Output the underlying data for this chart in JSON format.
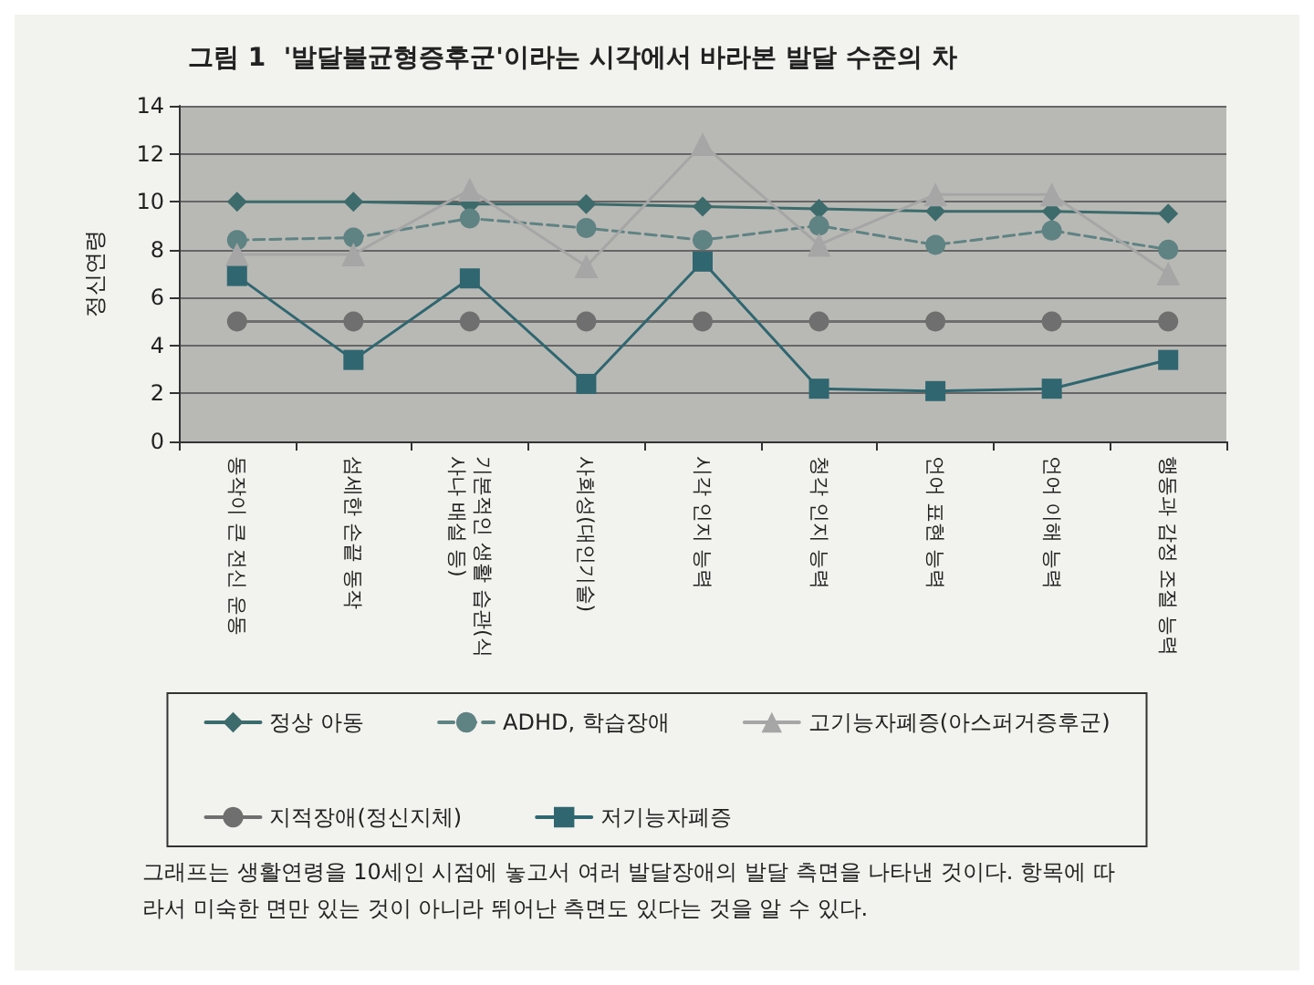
{
  "chart_data": {
    "type": "line",
    "title": "그림 1  '발달불균형증후군'이라는 시각에서 바라본 발달 수준의 차",
    "ylabel": "정신연령",
    "categories": [
      "동작이 큰 전신 운동",
      "섬세한 손끝 동작",
      "기본적인 생활 습관(식사나 배설 등)",
      "사회성(대인기술)",
      "시각 인지 능력",
      "청각 인지 능력",
      "언어 표현 능력",
      "언어 이해 능력",
      "행동과 감정 조절 능력"
    ],
    "series": [
      {
        "name": "정상 아동",
        "color": "#3d6b6b",
        "marker": "diamond",
        "line_style": "solid",
        "values": [
          10,
          10,
          9.9,
          9.9,
          9.8,
          9.7,
          9.6,
          9.6,
          9.5
        ]
      },
      {
        "name": "ADHD, 학습장애",
        "color": "#5f8282",
        "marker": "circle",
        "line_style": "dashed",
        "values": [
          8.4,
          8.5,
          9.3,
          8.9,
          8.4,
          9.0,
          8.2,
          8.8,
          8.0
        ]
      },
      {
        "name": "고기능자폐증(아스퍼거증후군)",
        "color": "#a6a6a6",
        "marker": "triangle",
        "line_style": "solid",
        "values": [
          7.8,
          7.8,
          10.5,
          7.3,
          12.4,
          8.2,
          10.3,
          10.3,
          7.0
        ]
      },
      {
        "name": "지적장애(정신지체)",
        "color": "#6f6f6f",
        "marker": "circle",
        "line_style": "solid",
        "values": [
          5,
          5,
          5,
          5,
          5,
          5,
          5,
          5,
          5
        ]
      },
      {
        "name": "저기능자폐증",
        "color": "#2f6670",
        "marker": "square",
        "line_style": "solid",
        "values": [
          6.9,
          3.4,
          6.8,
          2.4,
          7.5,
          2.2,
          2.1,
          2.2,
          3.4
        ]
      }
    ],
    "ylim": [
      0,
      14
    ],
    "yticks": [
      0,
      2,
      4,
      6,
      8,
      10,
      12,
      14
    ],
    "grid": "y",
    "legend": "bottom",
    "annotations": [
      "그래프는 생활연령을 10세인 시점에 놓고서 여러 발달장애의 발달 측면을 나타낸 것이다. 항목에 따라서 미숙한 면만 있는 것이 아니라 뛰어난 측면도 있다는 것을 알 수 있다."
    ]
  }
}
